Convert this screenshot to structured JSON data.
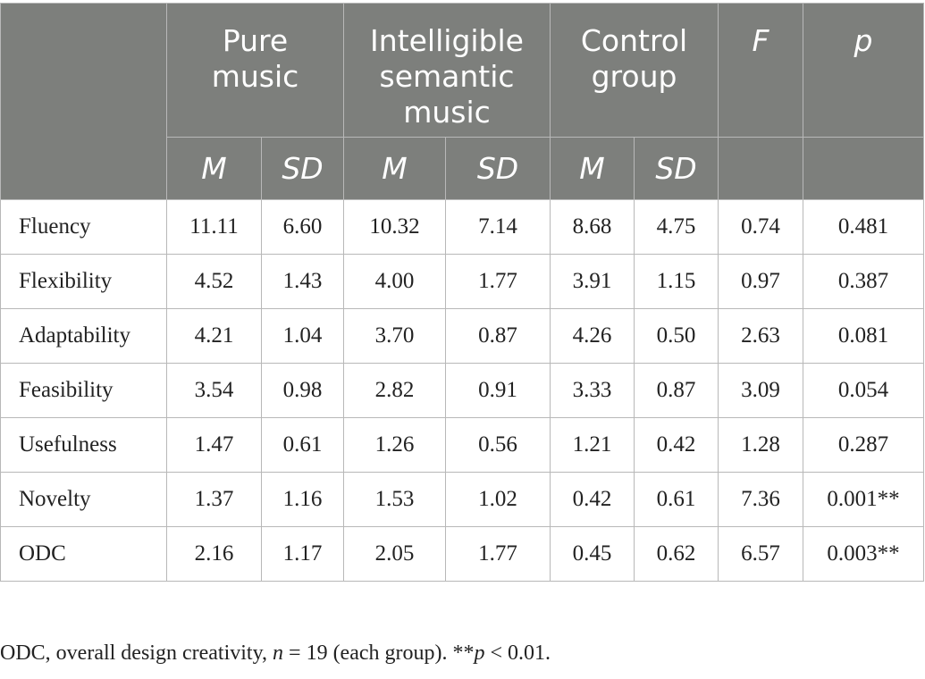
{
  "table": {
    "groups": [
      "Pure music",
      "Intelligible semantic music",
      "Control group"
    ],
    "group_lines": [
      [
        "Pure",
        "music"
      ],
      [
        "Intelligible",
        "semantic",
        "music"
      ],
      [
        "Control",
        "group"
      ]
    ],
    "stat_headers": [
      "F",
      "p"
    ],
    "sub_headers": [
      "M",
      "SD",
      "M",
      "SD",
      "M",
      "SD"
    ],
    "rows": [
      {
        "label": "Fluency",
        "values": [
          "11.11",
          "6.60",
          "10.32",
          "7.14",
          "8.68",
          "4.75",
          "0.74",
          "0.481"
        ]
      },
      {
        "label": "Flexibility",
        "values": [
          "4.52",
          "1.43",
          "4.00",
          "1.77",
          "3.91",
          "1.15",
          "0.97",
          "0.387"
        ]
      },
      {
        "label": "Adaptability",
        "values": [
          "4.21",
          "1.04",
          "3.70",
          "0.87",
          "4.26",
          "0.50",
          "2.63",
          "0.081"
        ]
      },
      {
        "label": "Feasibility",
        "values": [
          "3.54",
          "0.98",
          "2.82",
          "0.91",
          "3.33",
          "0.87",
          "3.09",
          "0.054"
        ]
      },
      {
        "label": "Usefulness",
        "values": [
          "1.47",
          "0.61",
          "1.26",
          "0.56",
          "1.21",
          "0.42",
          "1.28",
          "0.287"
        ]
      },
      {
        "label": "Novelty",
        "values": [
          "1.37",
          "1.16",
          "1.53",
          "1.02",
          "0.42",
          "0.61",
          "7.36",
          "0.001**"
        ]
      },
      {
        "label": "ODC",
        "values": [
          "2.16",
          "1.17",
          "2.05",
          "1.77",
          "0.45",
          "0.62",
          "6.57",
          "0.003**"
        ]
      }
    ]
  },
  "caption": {
    "prefix": "ODC, overall design creativity, ",
    "n_var": "n",
    "n_text": " = 19 (each group). **",
    "p_var": "p",
    "p_text": " < 0.01."
  }
}
